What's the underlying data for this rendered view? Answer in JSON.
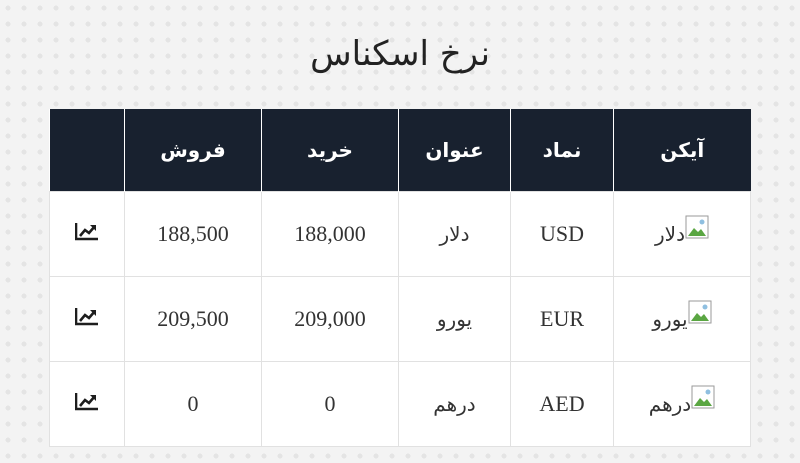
{
  "page_title": "نرخ اسکناس",
  "table": {
    "headers": {
      "icon": "آیکن",
      "symbol": "نماد",
      "title": "عنوان",
      "buy": "خرید",
      "sell": "فروش",
      "chart": ""
    },
    "rows": [
      {
        "icon_alt": "دلار",
        "symbol": "USD",
        "title": "دلار",
        "buy": "188,000",
        "sell": "188,500",
        "chart_icon": "trend-chart-icon"
      },
      {
        "icon_alt": "یورو",
        "symbol": "EUR",
        "title": "یورو",
        "buy": "209,000",
        "sell": "209,500",
        "chart_icon": "trend-chart-icon"
      },
      {
        "icon_alt": "درهم",
        "symbol": "AED",
        "title": "درهم",
        "buy": "0",
        "sell": "0",
        "chart_icon": "trend-chart-icon"
      }
    ]
  },
  "colors": {
    "header_bg": "#18212f",
    "header_text": "#ffffff",
    "page_bg": "#f3f3f3",
    "border": "#e1e1e1"
  }
}
